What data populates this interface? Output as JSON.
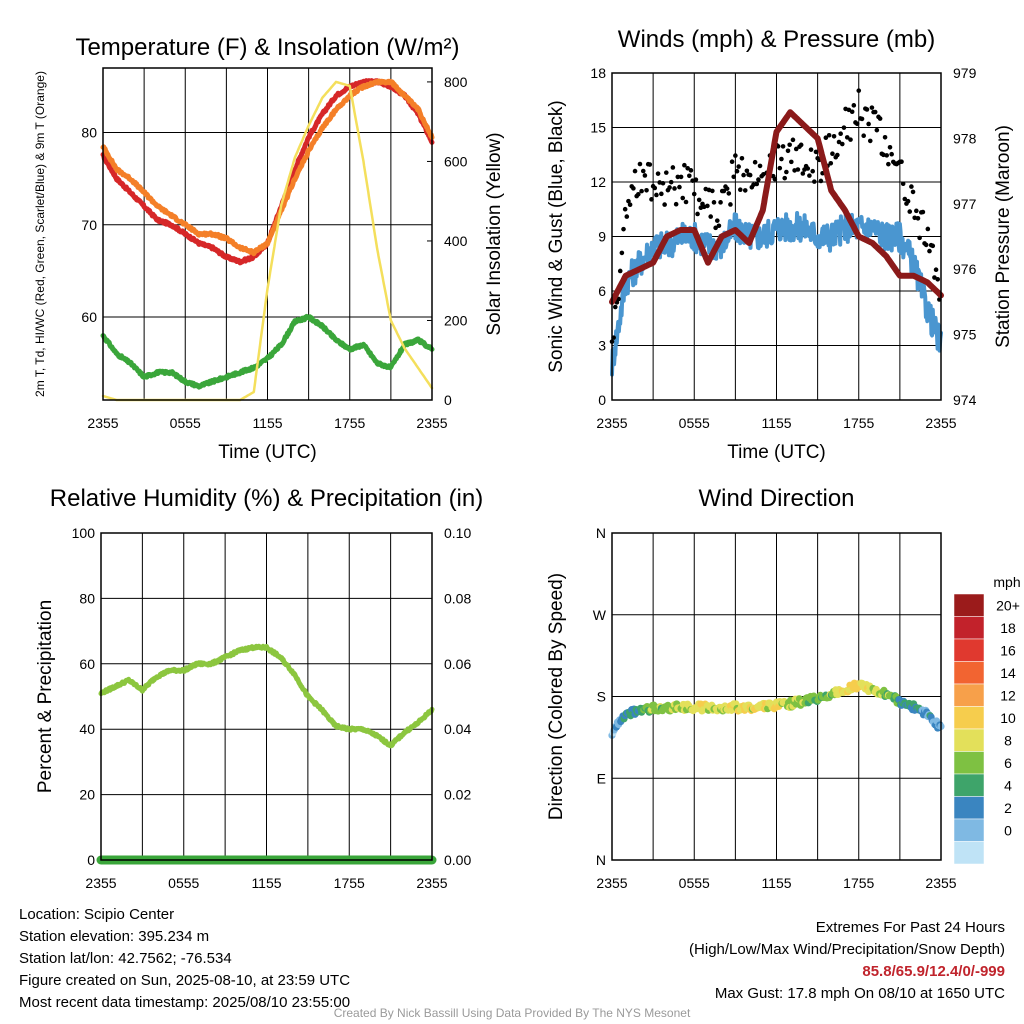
{
  "chart_data": [
    {
      "type": "line",
      "title": "Temperature (F) & Insolation (W/m²)",
      "xlabel": "Time (UTC)",
      "ylabel": "2m T, Td, HI/WC (Red, Green, Scarlet/Blue) & 9m T (Orange)",
      "y2label": "Solar Insolation (Yellow)",
      "x_ticks": [
        "2355",
        "0555",
        "1155",
        "1755",
        "2355"
      ],
      "y_ticks": [
        "60",
        "70",
        "80"
      ],
      "y2_ticks": [
        "0",
        "200",
        "400",
        "600",
        "800"
      ],
      "ylim": [
        51,
        87
      ],
      "y2lim": [
        0,
        835
      ],
      "x_hours": [
        0,
        1,
        2,
        3,
        4,
        5,
        6,
        7,
        8,
        9,
        10,
        11,
        12,
        13,
        14,
        15,
        16,
        17,
        18,
        19,
        20,
        21,
        22,
        23,
        24
      ],
      "series": [
        {
          "name": "2m T",
          "color": "#d62728",
          "values": [
            77.5,
            75,
            73.5,
            72,
            70.5,
            70,
            69,
            68,
            67.5,
            66.5,
            66,
            66.5,
            68,
            72,
            76,
            79.5,
            82,
            84,
            85,
            85.5,
            85.5,
            85,
            84,
            82,
            79
          ]
        },
        {
          "name": "9m T",
          "color": "#f47f28",
          "values": [
            78.5,
            76,
            75,
            73.5,
            72,
            71,
            70,
            69,
            69,
            68.5,
            67.5,
            67,
            68,
            71.5,
            75,
            78,
            80.5,
            82.5,
            84,
            85,
            85.5,
            85.5,
            84,
            82.5,
            79.5
          ]
        },
        {
          "name": "Td",
          "color": "#3aa63a",
          "values": [
            58,
            56,
            55,
            53.5,
            54,
            54,
            53,
            52.5,
            53,
            53.5,
            54,
            54.5,
            55.5,
            57,
            59.5,
            60,
            59,
            57.5,
            56.5,
            57,
            55,
            54.5,
            57,
            57.5,
            56.5
          ]
        },
        {
          "name": "Solar Insolation",
          "axis": "y2",
          "color": "#f4df5c",
          "values": [
            10,
            0,
            0,
            0,
            0,
            0,
            0,
            0,
            0,
            0,
            0,
            20,
            280,
            490,
            610,
            690,
            760,
            800,
            790,
            600,
            380,
            200,
            130,
            80,
            30
          ]
        }
      ]
    },
    {
      "type": "line",
      "title": "Winds (mph) & Pressure (mb)",
      "xlabel": "Time (UTC)",
      "ylabel": "Sonic Wind & Gust (Blue, Black)",
      "y2label": "Station Pressure (Maroon)",
      "x_ticks": [
        "2355",
        "0555",
        "1155",
        "1755",
        "2355"
      ],
      "y_ticks": [
        "0",
        "3",
        "6",
        "9",
        "12",
        "15",
        "18"
      ],
      "y2_ticks": [
        "974",
        "975",
        "976",
        "977",
        "978",
        "979"
      ],
      "ylim": [
        0,
        18
      ],
      "y2lim": [
        974,
        979
      ],
      "x_hours": [
        0,
        1,
        2,
        3,
        4,
        5,
        6,
        7,
        8,
        9,
        10,
        11,
        12,
        13,
        14,
        15,
        16,
        17,
        18,
        19,
        20,
        21,
        22,
        23,
        24
      ],
      "series": [
        {
          "name": "Sonic Wind",
          "color": "#4a96d0",
          "values": [
            2,
            6.5,
            7.5,
            8.5,
            8.5,
            9,
            9,
            8.5,
            8.5,
            9.5,
            9,
            9,
            9.5,
            9.5,
            9.5,
            9,
            9,
            9.5,
            9.5,
            9.5,
            9,
            9,
            7.5,
            5,
            3
          ]
        },
        {
          "name": "Gust",
          "color": "#000000",
          "values": [
            3,
            10,
            12.5,
            12,
            11.5,
            12,
            11.5,
            10.5,
            10.5,
            12.5,
            12.5,
            12,
            13,
            13.5,
            13,
            12.5,
            14,
            15,
            16,
            15,
            14,
            12.5,
            11,
            8.5,
            6
          ]
        },
        {
          "name": "Station Pressure",
          "axis": "y2",
          "color": "#8b1a1a",
          "values": [
            975.5,
            975.9,
            976,
            976.1,
            976.5,
            976.6,
            976.6,
            976.1,
            976.5,
            976.6,
            976.4,
            976.9,
            978.1,
            978.4,
            978.2,
            978,
            977.2,
            976.9,
            976.5,
            976.4,
            976.2,
            975.9,
            975.9,
            975.8,
            975.6
          ]
        }
      ]
    },
    {
      "type": "line",
      "title": "Relative Humidity (%) & Precipitation (in)",
      "ylabel": "Percent & Precipitation",
      "x_ticks": [
        "2355",
        "0555",
        "1155",
        "1755",
        "2355"
      ],
      "y_ticks": [
        "0",
        "20",
        "40",
        "60",
        "80",
        "100"
      ],
      "y2_ticks": [
        "0.00",
        "0.02",
        "0.04",
        "0.06",
        "0.08",
        "0.10"
      ],
      "ylim": [
        0,
        100
      ],
      "y2lim": [
        0,
        0.1
      ],
      "x_hours": [
        0,
        1,
        2,
        3,
        4,
        5,
        6,
        7,
        8,
        9,
        10,
        11,
        12,
        13,
        14,
        15,
        16,
        17,
        18,
        19,
        20,
        21,
        22,
        23,
        24
      ],
      "series": [
        {
          "name": "Relative Humidity",
          "color": "#8cc63f",
          "values": [
            51,
            53,
            55,
            52,
            56,
            58,
            58,
            60,
            60,
            62,
            64,
            65,
            65,
            62,
            57,
            50,
            46,
            41,
            40,
            40,
            38,
            35,
            39,
            42,
            46
          ]
        },
        {
          "name": "Precipitation",
          "axis": "y2",
          "color": "#3aa63a",
          "values": [
            0,
            0,
            0,
            0,
            0,
            0,
            0,
            0,
            0,
            0,
            0,
            0,
            0,
            0,
            0,
            0,
            0,
            0,
            0,
            0,
            0,
            0,
            0,
            0,
            0
          ]
        }
      ]
    },
    {
      "type": "scatter",
      "title": "Wind Direction",
      "ylabel": "Direction (Colored By Speed)",
      "x_ticks": [
        "2355",
        "0555",
        "1155",
        "1755",
        "2355"
      ],
      "y_ticks": [
        "N",
        "E",
        "S",
        "W",
        "N"
      ],
      "ylim": [
        0,
        360
      ],
      "x_hours": [
        0,
        1,
        2,
        3,
        4,
        5,
        6,
        7,
        8,
        9,
        10,
        11,
        12,
        13,
        14,
        15,
        16,
        17,
        18,
        19,
        20,
        21,
        22,
        23,
        24
      ],
      "values": [
        140,
        160,
        165,
        167,
        168,
        168,
        168,
        168,
        168,
        168,
        168,
        169,
        170,
        172,
        175,
        178,
        182,
        188,
        192,
        188,
        183,
        175,
        168,
        160,
        145
      ],
      "speeds": [
        2,
        4,
        6,
        8,
        8,
        9,
        10,
        10,
        9,
        10,
        10,
        10,
        10,
        9,
        8,
        7,
        8,
        10,
        11,
        10,
        8,
        6,
        5,
        4,
        2
      ],
      "colorbar": {
        "title": "mph",
        "labels": [
          "20+",
          "18",
          "16",
          "14",
          "12",
          "10",
          "8",
          "6",
          "4",
          "2",
          "0"
        ],
        "colors": [
          "#9b1b1b",
          "#c2222b",
          "#e0392f",
          "#f26431",
          "#f7a04a",
          "#f6cd4d",
          "#e3e05a",
          "#7ec142",
          "#3ea46a",
          "#3a85c0",
          "#7fb9e3",
          "#bfe3f6"
        ]
      }
    }
  ],
  "info": {
    "location": "Location: Scipio Center",
    "elevation": "Station elevation: 395.234 m",
    "latlon": "Station lat/lon: 42.7562; -76.534",
    "created": "Figure created on Sun, 2025-08-10, at 23:59 UTC",
    "recent": "Most recent data timestamp: 2025/08/10 23:55:00"
  },
  "extremes": {
    "title": "Extremes For Past 24 Hours",
    "subtitle": "(High/Low/Max Wind/Precipitation/Snow Depth)",
    "values": "85.8/65.9/12.4/0/-999",
    "max_gust": "Max Gust: 17.8 mph On 08/10 at 1650 UTC"
  },
  "credit": "Created By Nick Bassill Using Data Provided By The NYS Mesonet"
}
